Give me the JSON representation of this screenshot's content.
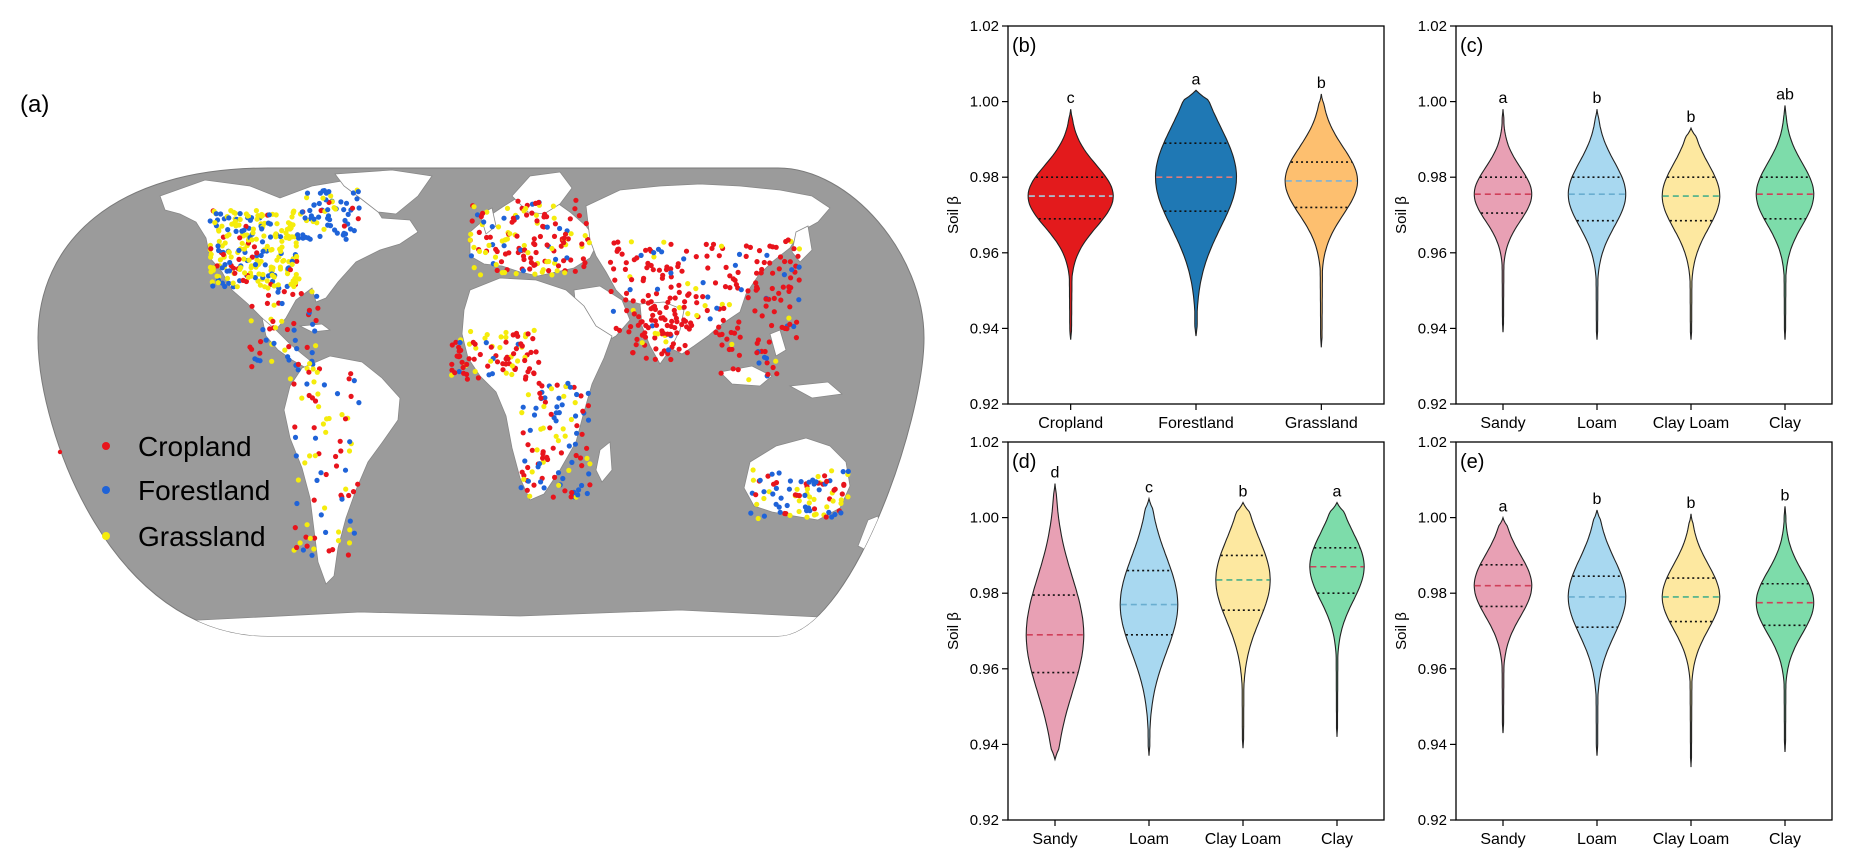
{
  "map_panel": {
    "label": "(a)",
    "legend": [
      {
        "name": "Cropland",
        "color": "#e8141c"
      },
      {
        "name": "Forestland",
        "color": "#1f63d8"
      },
      {
        "name": "Grassland",
        "color": "#f5ec0c"
      }
    ],
    "ocean_color": "#9b9b9b",
    "land_color": "#ffffff"
  },
  "chart_data": [
    {
      "type": "violin",
      "panel_label": "(b)",
      "ylabel": "Soil β",
      "ylim": [
        0.92,
        1.02
      ],
      "yticks": [
        0.92,
        0.94,
        0.96,
        0.98,
        1.0,
        1.02
      ],
      "ytick_labels": [
        "0.92",
        "0.94",
        "0.96",
        "0.98",
        "1.00",
        "1.02"
      ],
      "categories": [
        "Cropland",
        "Forestland",
        "Grassland"
      ],
      "colors": [
        "#e31a1c",
        "#1f78b4",
        "#fdbf6f"
      ],
      "median_colors": [
        "#a3d0e0",
        "#e07a7a",
        "#7fb3d5"
      ],
      "median": [
        0.975,
        0.98,
        0.979
      ],
      "q1": [
        0.969,
        0.971,
        0.972
      ],
      "q3": [
        0.98,
        0.989,
        0.984
      ],
      "min": [
        0.937,
        0.938,
        0.935
      ],
      "max": [
        0.998,
        1.003,
        1.002
      ],
      "width": [
        1.0,
        0.95,
        0.85
      ],
      "letters": [
        "c",
        "a",
        "b"
      ]
    },
    {
      "type": "violin",
      "panel_label": "(c)",
      "ylabel": "Soil β",
      "ylim": [
        0.92,
        1.02
      ],
      "yticks": [
        0.92,
        0.94,
        0.96,
        0.98,
        1.0,
        1.02
      ],
      "ytick_labels": [
        "0.92",
        "0.94",
        "0.96",
        "0.98",
        "1.00",
        "1.02"
      ],
      "categories": [
        "Sandy",
        "Loam",
        "Clay Loam",
        "Clay"
      ],
      "colors": [
        "#e8a0b4",
        "#a8d8f0",
        "#fde8a0",
        "#7ddcaa"
      ],
      "median_colors": [
        "#d0405a",
        "#6aaed0",
        "#4ab08a",
        "#d0405a"
      ],
      "median": [
        0.9755,
        0.9755,
        0.975,
        0.9755
      ],
      "q1": [
        0.9705,
        0.9685,
        0.9685,
        0.969
      ],
      "q3": [
        0.98,
        0.98,
        0.98,
        0.98
      ],
      "min": [
        0.939,
        0.937,
        0.937,
        0.937
      ],
      "max": [
        0.998,
        0.998,
        0.993,
        0.999
      ],
      "width": [
        0.9,
        0.9,
        0.9,
        0.9
      ],
      "letters": [
        "a",
        "b",
        "b",
        "ab"
      ]
    },
    {
      "type": "violin",
      "panel_label": "(d)",
      "ylabel": "Soil β",
      "ylim": [
        0.92,
        1.02
      ],
      "yticks": [
        0.92,
        0.94,
        0.96,
        0.98,
        1.0,
        1.02
      ],
      "ytick_labels": [
        "0.92",
        "0.94",
        "0.96",
        "0.98",
        "1.00",
        "1.02"
      ],
      "categories": [
        "Sandy",
        "Loam",
        "Clay Loam",
        "Clay"
      ],
      "colors": [
        "#e8a0b4",
        "#a8d8f0",
        "#fde8a0",
        "#7ddcaa"
      ],
      "median_colors": [
        "#d0405a",
        "#6aaed0",
        "#4ab08a",
        "#d0405a"
      ],
      "median": [
        0.969,
        0.977,
        0.9835,
        0.987
      ],
      "q1": [
        0.959,
        0.969,
        0.9755,
        0.98
      ],
      "q3": [
        0.9795,
        0.986,
        0.99,
        0.992
      ],
      "min": [
        0.936,
        0.937,
        0.939,
        0.942
      ],
      "max": [
        1.009,
        1.005,
        1.004,
        1.004
      ],
      "width": [
        0.9,
        0.9,
        0.85,
        0.85
      ],
      "letters": [
        "d",
        "c",
        "b",
        "a"
      ]
    },
    {
      "type": "violin",
      "panel_label": "(e)",
      "ylabel": "Soil β",
      "ylim": [
        0.92,
        1.02
      ],
      "yticks": [
        0.92,
        0.94,
        0.96,
        0.98,
        1.0,
        1.02
      ],
      "ytick_labels": [
        "0.92",
        "0.94",
        "0.96",
        "0.98",
        "1.00",
        "1.02"
      ],
      "categories": [
        "Sandy",
        "Loam",
        "Clay Loam",
        "Clay"
      ],
      "colors": [
        "#e8a0b4",
        "#a8d8f0",
        "#fde8a0",
        "#7ddcaa"
      ],
      "median_colors": [
        "#d0405a",
        "#6aaed0",
        "#4ab08a",
        "#d0405a"
      ],
      "median": [
        0.982,
        0.979,
        0.979,
        0.9775
      ],
      "q1": [
        0.9765,
        0.971,
        0.9725,
        0.9715
      ],
      "q3": [
        0.9875,
        0.9845,
        0.984,
        0.9825
      ],
      "min": [
        0.943,
        0.937,
        0.934,
        0.938
      ],
      "max": [
        1.0,
        1.002,
        1.001,
        1.003
      ],
      "width": [
        0.9,
        0.9,
        0.9,
        0.9
      ],
      "letters": [
        "a",
        "b",
        "b",
        "b"
      ]
    }
  ]
}
